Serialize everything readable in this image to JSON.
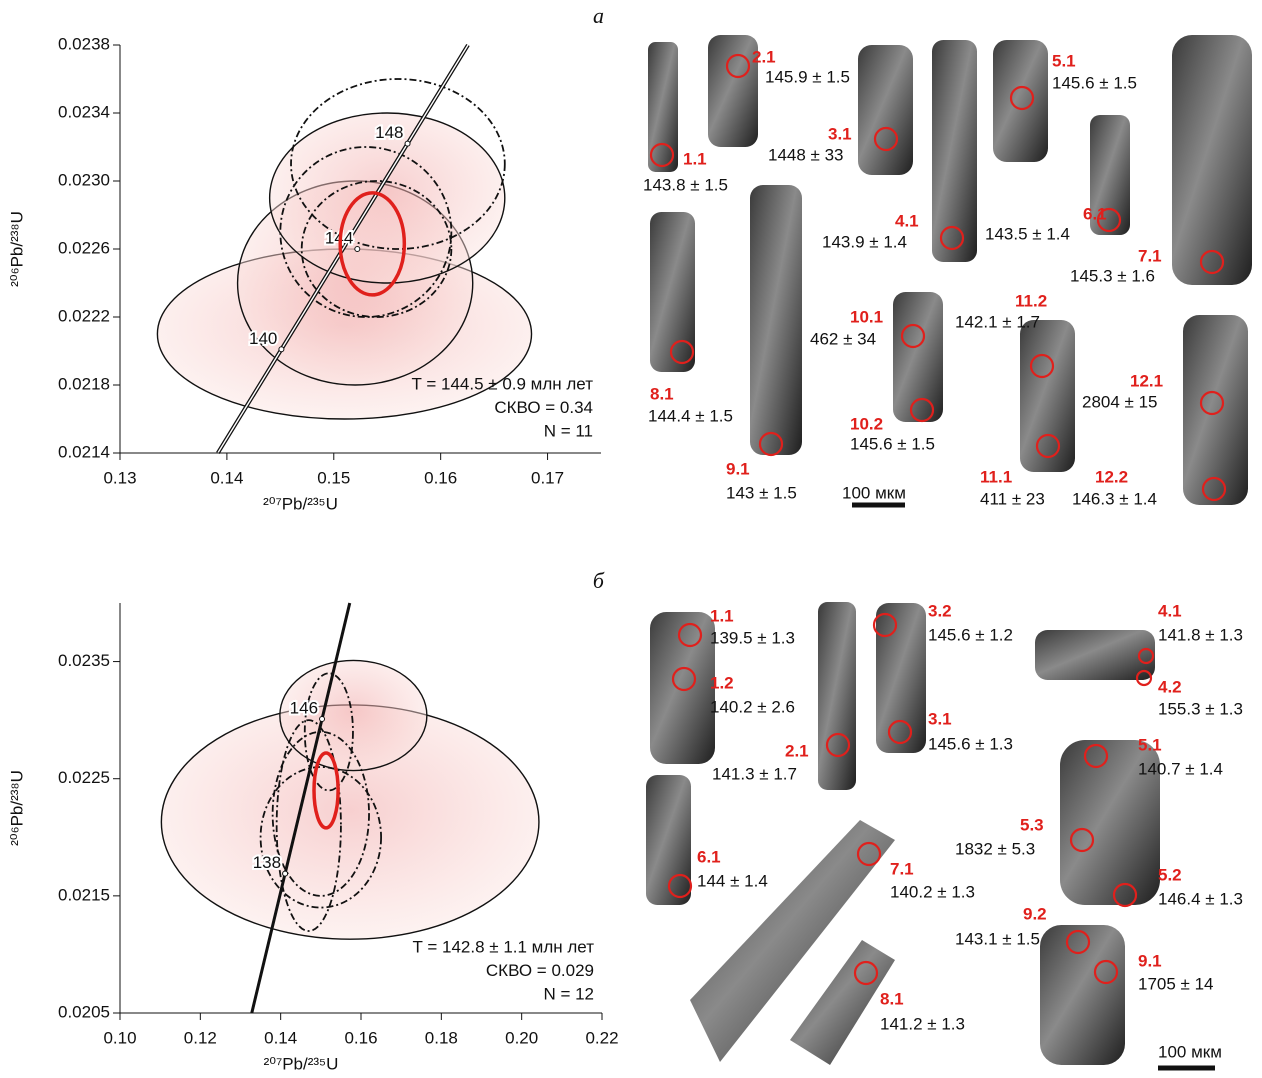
{
  "chart_data": [
    {
      "type": "concordia",
      "x_label": "²⁰⁷Pb/²³⁵U",
      "y_label": "²⁰⁶Pb/²³⁸U",
      "xlim": [
        0.13,
        0.175
      ],
      "xticks": [
        0.13,
        0.14,
        0.15,
        0.16,
        0.17
      ],
      "ylim": [
        0.0214,
        0.0238
      ],
      "yticks": [
        0.0214,
        0.0218,
        0.0222,
        0.0226,
        {
          "value": 0.023,
          "label": "0.0230"
        },
        0.0234,
        0.0238
      ],
      "concordia": {
        "ages": [
          140,
          144,
          148
        ],
        "x": [
          0.1451,
          0.1522,
          0.1569
        ],
        "y": [
          0.02201,
          0.0226,
          0.02322
        ]
      },
      "ellipses": [
        {
          "x": 0.151,
          "y": 0.0221,
          "x_err": 0.0175,
          "y_err": 0.0005,
          "style": "solid"
        },
        {
          "x": 0.152,
          "y": 0.0224,
          "x_err": 0.011,
          "y_err": 0.0006,
          "style": "solid"
        },
        {
          "x": 0.155,
          "y": 0.0229,
          "x_err": 0.011,
          "y_err": 0.0005,
          "style": "solid"
        },
        {
          "x": 0.156,
          "y": 0.0231,
          "x_err": 0.01,
          "y_err": 0.0005,
          "style": "dashed"
        },
        {
          "x": 0.153,
          "y": 0.0227,
          "x_err": 0.008,
          "y_err": 0.0005,
          "style": "dashed"
        },
        {
          "x": 0.154,
          "y": 0.0226,
          "x_err": 0.007,
          "y_err": 0.0004,
          "style": "dashed"
        }
      ],
      "mean": {
        "x": 0.1536,
        "y": 0.02263,
        "x_err": 0.003,
        "y_err": 0.0003,
        "color": "#e0201c"
      },
      "annotations": [
        "T = 144.5 ± 0.9 млн лет",
        "СКВО = 0.34",
        "N = 11"
      ]
    },
    {
      "type": "concordia",
      "x_label": "²⁰⁷Pb/²³⁵U",
      "y_label": "²⁰⁶Pb/²³⁸U",
      "xlim": [
        0.1,
        0.22
      ],
      "xticks": [
        {
          "value": 0.1,
          "label": "0.10"
        },
        0.12,
        0.14,
        0.16,
        0.18,
        {
          "value": 0.2,
          "label": "0.20"
        },
        0.22
      ],
      "ylim": [
        0.0205,
        0.024
      ],
      "yticks": [
        0.0205,
        0.0215,
        0.0225,
        0.0235
      ],
      "concordia": {
        "ages": [
          138,
          146
        ],
        "x": [
          0.1411,
          0.1503
        ],
        "y": [
          0.02169,
          0.02301
        ]
      },
      "ellipses": [
        {
          "x": 0.1573,
          "y": 0.02213,
          "x_err": 0.047,
          "y_err": 0.001,
          "style": "solid"
        },
        {
          "x": 0.1581,
          "y": 0.02304,
          "x_err": 0.0183,
          "y_err": 0.00047,
          "style": "solid"
        },
        {
          "x": 0.152,
          "y": 0.0229,
          "x_err": 0.006,
          "y_err": 0.0005,
          "style": "dashed"
        },
        {
          "x": 0.15,
          "y": 0.0222,
          "x_err": 0.012,
          "y_err": 0.0007,
          "style": "dashed"
        },
        {
          "x": 0.15,
          "y": 0.022,
          "x_err": 0.015,
          "y_err": 0.0006,
          "style": "dashed"
        },
        {
          "x": 0.147,
          "y": 0.0221,
          "x_err": 0.008,
          "y_err": 0.0009,
          "style": "dashed"
        }
      ],
      "mean": {
        "x": 0.1513,
        "y": 0.0224,
        "x_err": 0.003,
        "y_err": 0.00032,
        "color": "#e0201c"
      },
      "annotations": [
        "T = 142.8 ± 1.1 млн лет",
        "СКВО = 0.029",
        "N = 12"
      ]
    }
  ],
  "grain_panels": [
    {
      "letter": "а",
      "scale_label": "100 мкм",
      "grains": [
        {
          "spot": "2.1",
          "age": "145.9 ± 1.5"
        },
        {
          "spot": "1.1",
          "age": "143.8 ± 1.5"
        },
        {
          "spot": "3.1",
          "age": "1448 ± 33"
        },
        {
          "spot": "5.1",
          "age": "145.6 ± 1.5"
        },
        {
          "spot": "4.1",
          "age": "143.9 ± 1.4"
        },
        {
          "spot": "6.1",
          "age": "143.5 ± 1.4"
        },
        {
          "spot": "7.1",
          "age": "145.3 ± 1.6"
        },
        {
          "spot": "10.1",
          "age": "462 ± 34"
        },
        {
          "spot": "11.2",
          "age": "142.1 ± 1.7"
        },
        {
          "spot": "8.1",
          "age": "144.4 ± 1.5"
        },
        {
          "spot": "10.2",
          "age": "145.6 ± 1.5"
        },
        {
          "spot": "12.1",
          "age": "2804 ± 15"
        },
        {
          "spot": "9.1",
          "age": "143 ± 1.5"
        },
        {
          "spot": "11.1",
          "age": "411 ± 23"
        },
        {
          "spot": "12.2",
          "age": "146.3 ± 1.4"
        }
      ]
    },
    {
      "letter": "б",
      "scale_label": "100 мкм",
      "grains": [
        {
          "spot": "1.1",
          "age": "139.5 ± 1.3"
        },
        {
          "spot": "1.2",
          "age": "140.2 ± 2.6"
        },
        {
          "spot": "2.1",
          "age": "141.3 ± 1.7"
        },
        {
          "spot": "3.2",
          "age": "145.6 ± 1.2"
        },
        {
          "spot": "3.1",
          "age": "145.6 ± 1.3"
        },
        {
          "spot": "4.1",
          "age": "141.8 ± 1.3"
        },
        {
          "spot": "4.2",
          "age": "155.3 ± 1.3"
        },
        {
          "spot": "5.1",
          "age": "140.7 ± 1.4"
        },
        {
          "spot": "5.3",
          "age": "1832 ± 5.3"
        },
        {
          "spot": "6.1",
          "age": "144 ± 1.4"
        },
        {
          "spot": "7.1",
          "age": "140.2 ± 1.3"
        },
        {
          "spot": "5.2",
          "age": "146.4 ± 1.3"
        },
        {
          "spot": "9.2",
          "age": "143.1 ± 1.5"
        },
        {
          "spot": "9.1",
          "age": "1705 ± 14"
        },
        {
          "spot": "8.1",
          "age": "141.2 ± 1.3"
        }
      ]
    }
  ]
}
